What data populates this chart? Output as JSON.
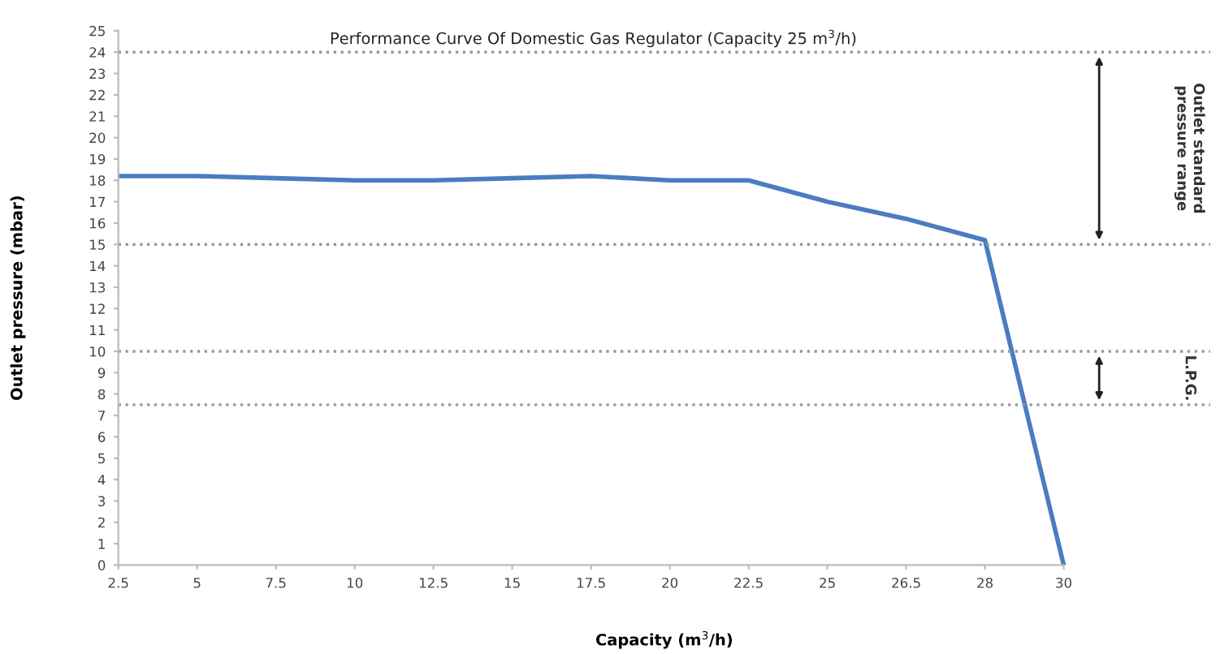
{
  "chart_data": {
    "type": "line",
    "title": "Performance Curve Of Domestic Gas Regulator (Capacity 25 m$^{3}$/h)",
    "xlabel": "Capacity (m$^{3}$/h)",
    "ylabel": "Outlet pressure (mbar)",
    "categories": [
      "2.5",
      "5",
      "7.5",
      "10",
      "12.5",
      "15",
      "17.5",
      "20",
      "22.5",
      "25",
      "26.5",
      "28",
      "30"
    ],
    "series": [
      {
        "color": "#4a7cc0",
        "values": [
          18.2,
          18.2,
          18.1,
          18.0,
          18.0,
          18.1,
          18.2,
          18.0,
          18.0,
          17.0,
          16.2,
          15.2,
          0
        ]
      }
    ],
    "ylim": [
      0,
      25
    ],
    "yticks": [
      0,
      1,
      2,
      3,
      4,
      5,
      6,
      7,
      8,
      9,
      10,
      11,
      12,
      13,
      14,
      15,
      16,
      17,
      18,
      19,
      20,
      21,
      22,
      23,
      24,
      25
    ],
    "ref_lines": [
      {
        "axis": "y",
        "value": 24,
        "color": "#999999",
        "line_style": "dotted"
      },
      {
        "axis": "y",
        "value": 15,
        "color": "#999999",
        "line_style": "dotted"
      },
      {
        "axis": "y",
        "value": 10,
        "color": "#999999",
        "line_style": "dotted"
      },
      {
        "axis": "y",
        "value": 7.5,
        "color": "#999999",
        "line_style": "dotted"
      }
    ],
    "annotations": [
      "Outlet standard\npressure range",
      "L.P.G."
    ],
    "grid": false,
    "legend": false,
    "marker": "none",
    "line_style": "solid"
  }
}
